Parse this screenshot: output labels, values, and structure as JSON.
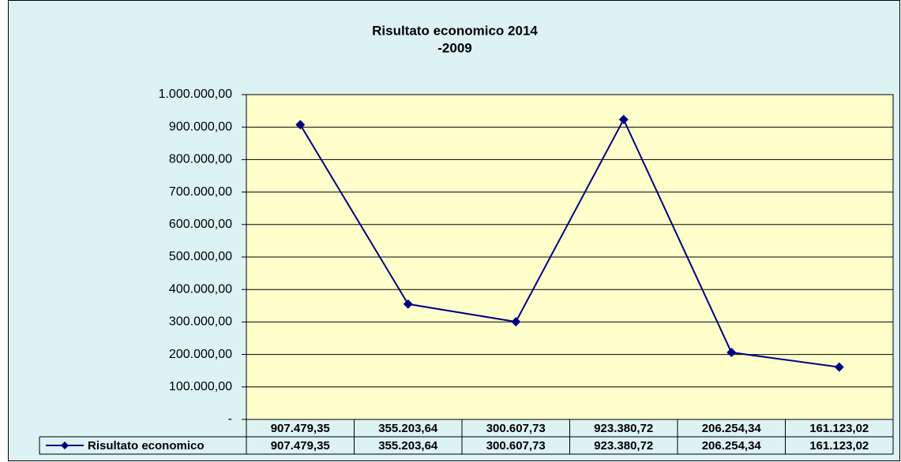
{
  "chart_data": {
    "type": "line",
    "title": [
      "Risultato economico 2014",
      "-2009"
    ],
    "categories": [
      "907.479,35",
      "355.203,64",
      "300.607,73",
      "923.380,72",
      "206.254,34",
      "161.123,02"
    ],
    "series": [
      {
        "name": "Risultato economico",
        "color": "#000080",
        "values": [
          907479.35,
          355203.64,
          300607.73,
          923380.72,
          206254.34,
          161123.02
        ],
        "value_labels": [
          "907.479,35",
          "355.203,64",
          "300.607,73",
          "923.380,72",
          "206.254,34",
          "161.123,02"
        ]
      }
    ],
    "ylim": [
      0,
      1000000
    ],
    "yticks": [
      {
        "value": 0,
        "label": "-"
      },
      {
        "value": 100000,
        "label": "100.000,00"
      },
      {
        "value": 200000,
        "label": "200.000,00"
      },
      {
        "value": 300000,
        "label": "300.000,00"
      },
      {
        "value": 400000,
        "label": "400.000,00"
      },
      {
        "value": 500000,
        "label": "500.000,00"
      },
      {
        "value": 600000,
        "label": "600.000,00"
      },
      {
        "value": 700000,
        "label": "700.000,00"
      },
      {
        "value": 800000,
        "label": "800.000,00"
      },
      {
        "value": 900000,
        "label": "900.000,00"
      },
      {
        "value": 1000000,
        "label": "1.000.000,00"
      }
    ],
    "grid": true,
    "plot_background": "#ffffcc",
    "background": "#ddf2f2"
  }
}
